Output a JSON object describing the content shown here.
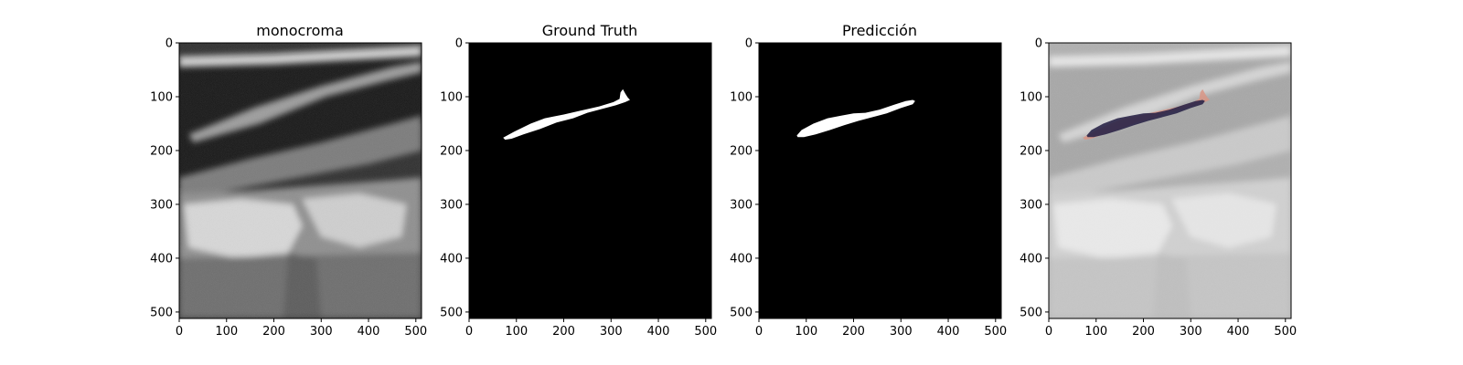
{
  "figure_title": "",
  "chart_data": [
    {
      "type": "image",
      "title": "monocroma",
      "content": "ultrasound",
      "xlim": [
        0,
        512
      ],
      "ylim": [
        512,
        0
      ],
      "xticks": [
        0,
        100,
        200,
        300,
        400,
        500
      ],
      "yticks": [
        0,
        100,
        200,
        300,
        400,
        500
      ]
    },
    {
      "type": "image",
      "title": "Ground Truth",
      "content": "mask",
      "xlim": [
        0,
        512
      ],
      "ylim": [
        512,
        0
      ],
      "xticks": [
        0,
        100,
        200,
        300,
        400,
        500
      ],
      "yticks": [
        0,
        100,
        200,
        300,
        400,
        500
      ],
      "region": {
        "fill": "#ffffff",
        "outline": [
          [
            72,
            176
          ],
          [
            95,
            165
          ],
          [
            130,
            150
          ],
          [
            160,
            140
          ],
          [
            200,
            133
          ],
          [
            240,
            125
          ],
          [
            275,
            118
          ],
          [
            305,
            110
          ],
          [
            318,
            104
          ],
          [
            320,
            92
          ],
          [
            325,
            86
          ],
          [
            330,
            94
          ],
          [
            335,
            101
          ],
          [
            340,
            106
          ],
          [
            330,
            110
          ],
          [
            310,
            116
          ],
          [
            280,
            123
          ],
          [
            250,
            130
          ],
          [
            220,
            140
          ],
          [
            185,
            148
          ],
          [
            150,
            160
          ],
          [
            115,
            170
          ],
          [
            90,
            178
          ],
          [
            76,
            180
          ]
        ]
      }
    },
    {
      "type": "image",
      "title": "Predicción",
      "content": "mask",
      "xlim": [
        0,
        512
      ],
      "ylim": [
        512,
        0
      ],
      "xticks": [
        0,
        100,
        200,
        300,
        400,
        500
      ],
      "yticks": [
        0,
        100,
        200,
        300,
        400,
        500
      ],
      "region": {
        "fill": "#ffffff",
        "outline": [
          [
            80,
            172
          ],
          [
            90,
            162
          ],
          [
            115,
            150
          ],
          [
            145,
            140
          ],
          [
            175,
            135
          ],
          [
            200,
            131
          ],
          [
            225,
            130
          ],
          [
            255,
            124
          ],
          [
            285,
            115
          ],
          [
            310,
            108
          ],
          [
            325,
            106
          ],
          [
            330,
            108
          ],
          [
            325,
            114
          ],
          [
            300,
            121
          ],
          [
            270,
            131
          ],
          [
            240,
            138
          ],
          [
            210,
            145
          ],
          [
            180,
            153
          ],
          [
            150,
            162
          ],
          [
            120,
            170
          ],
          [
            95,
            175
          ],
          [
            82,
            175
          ]
        ]
      }
    },
    {
      "type": "image",
      "title": "",
      "content": "overlay",
      "xlim": [
        0,
        512
      ],
      "ylim": [
        512,
        0
      ],
      "xticks": [
        0,
        100,
        200,
        300,
        400,
        500
      ],
      "yticks": [
        0,
        100,
        200,
        300,
        400,
        500
      ],
      "overlay_colors": {
        "prediction": "#2a2548",
        "ground_truth_only": "#d99585"
      }
    }
  ]
}
